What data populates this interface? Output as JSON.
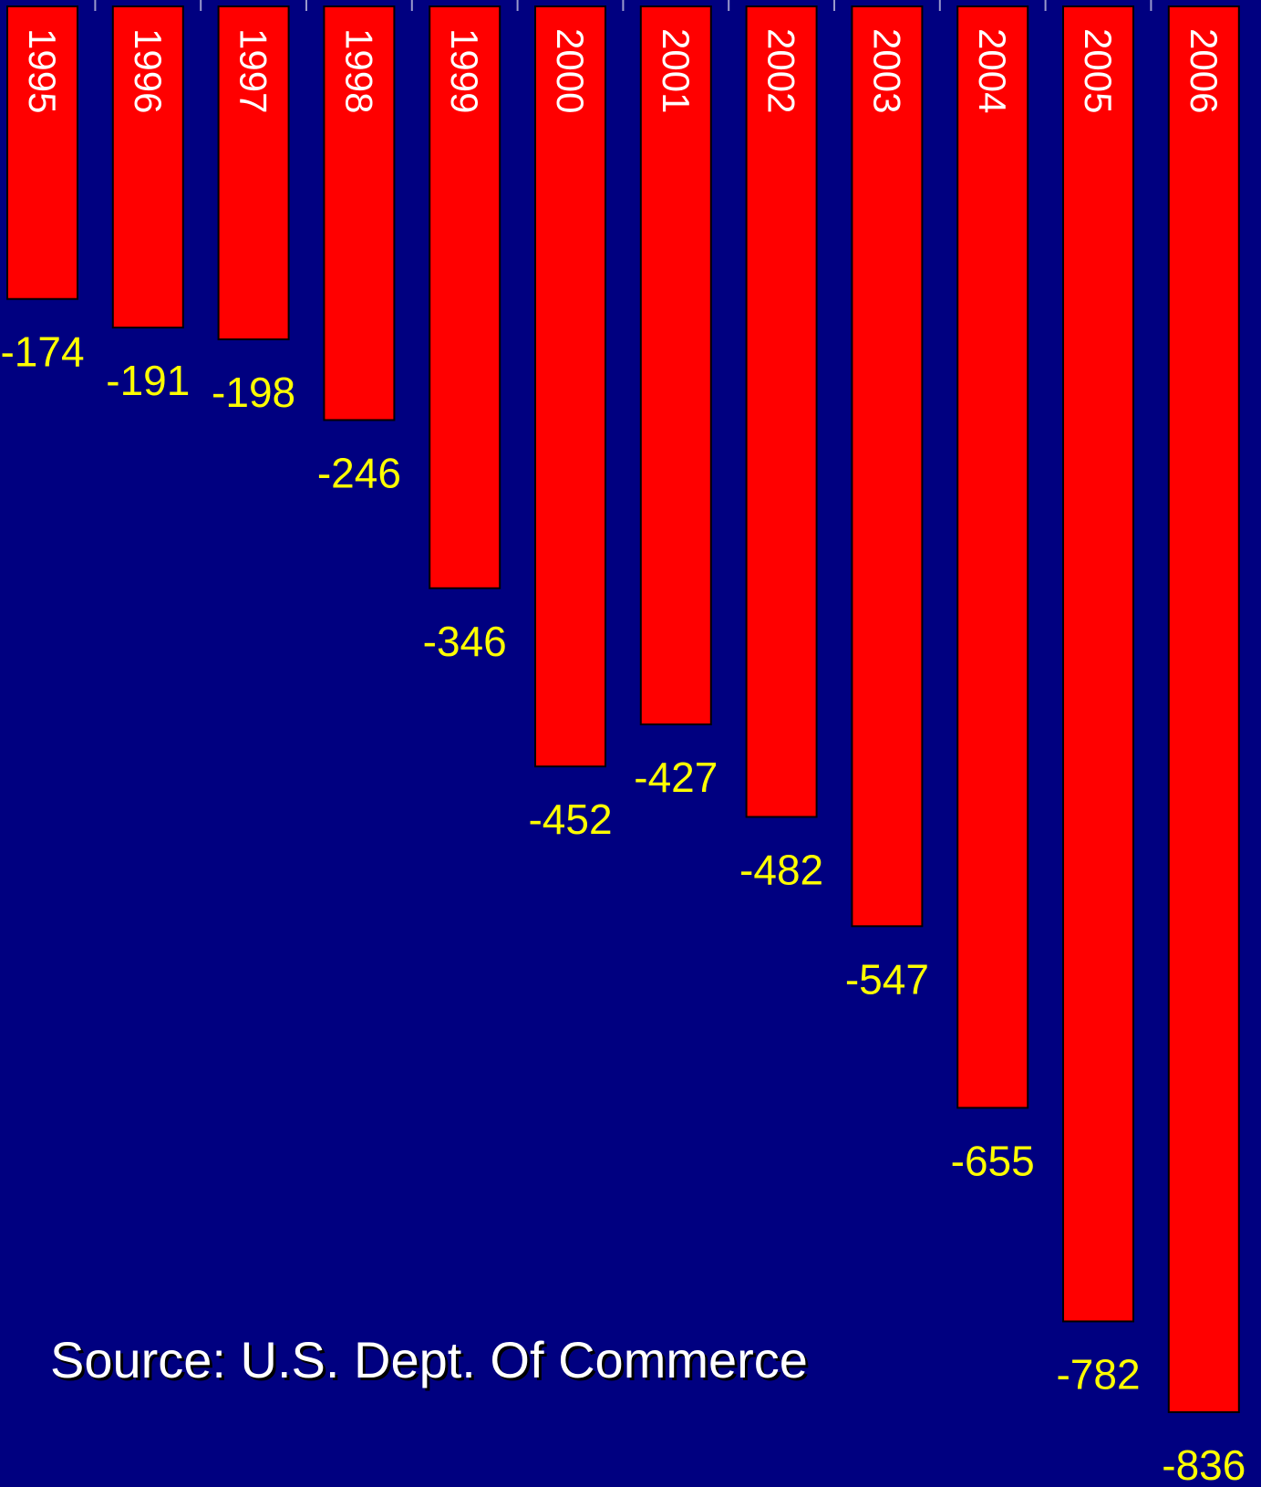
{
  "chart_data": {
    "type": "bar",
    "orientation": "vertical",
    "categories": [
      "1995",
      "1996",
      "1997",
      "1998",
      "1999",
      "2000",
      "2001",
      "2002",
      "2003",
      "2004",
      "2005",
      "2006"
    ],
    "values": [
      -174,
      -191,
      -198,
      -246,
      -346,
      -452,
      -427,
      -482,
      -547,
      -655,
      -782,
      -836
    ],
    "value_labels": [
      "-174",
      "-191",
      "-198",
      "-246",
      "-346",
      "-452",
      "-427",
      "-482",
      "-547",
      "-655",
      "-782",
      "-836"
    ],
    "ylim": [
      -836,
      0
    ],
    "grid": false,
    "legend": "none"
  },
  "source_text": "Source:  U.S. Dept. Of Commerce",
  "colors": {
    "background": "#000080",
    "bar": "#ff0000",
    "bar_border": "#000000",
    "value_label": "#ffff00",
    "year_label": "#ffffff",
    "source_text": "#ffffff"
  }
}
